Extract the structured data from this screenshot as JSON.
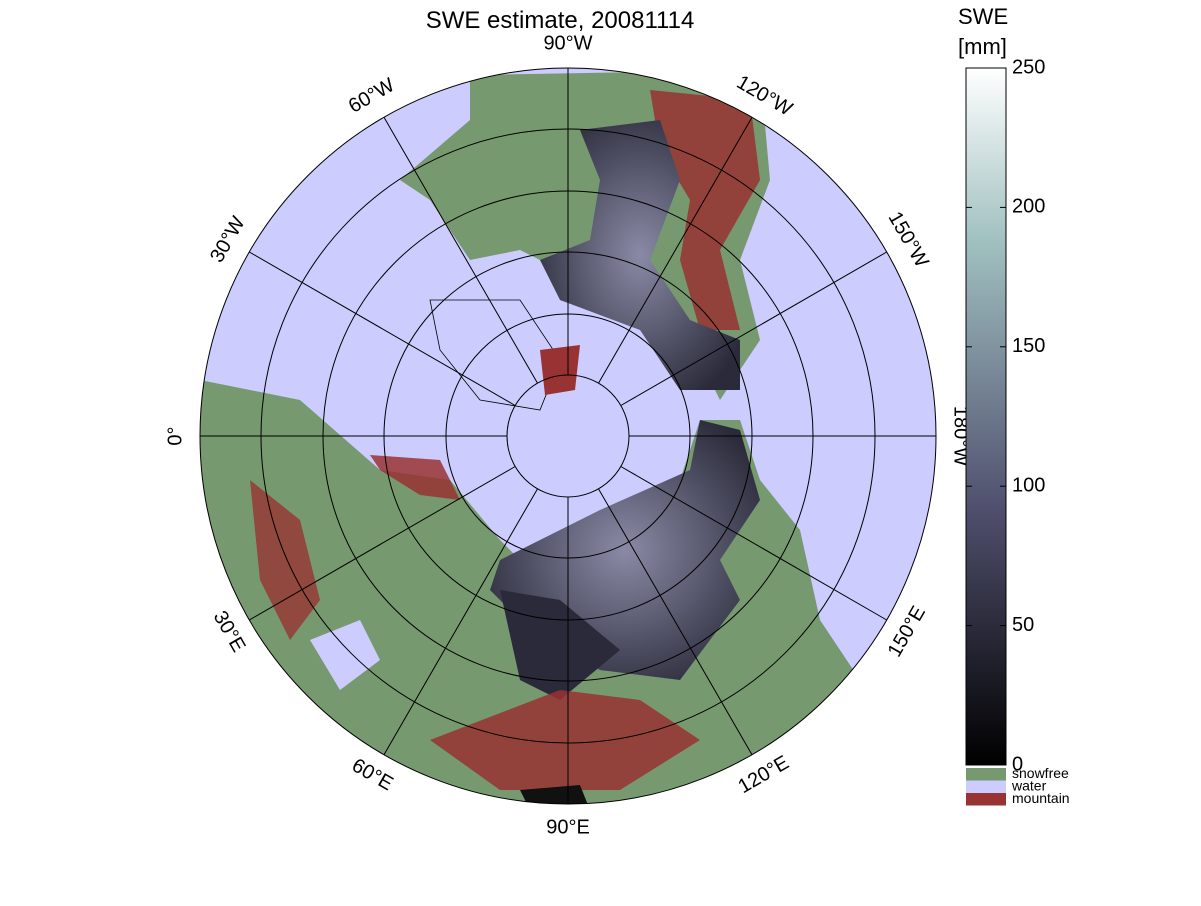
{
  "title": "SWE estimate, 20081114",
  "longitude_labels": [
    "90°W",
    "120°W",
    "150°W",
    "180°W",
    "150°E",
    "120°E",
    "90°E",
    "60°E",
    "30°E",
    "0°",
    "30°W",
    "60°W"
  ],
  "colorbar": {
    "label": [
      "SWE",
      "[mm]"
    ],
    "lim": [
      0,
      250
    ],
    "ticks": [
      0,
      50,
      100,
      150,
      200,
      250
    ]
  },
  "legend": [
    {
      "name": "snowfree",
      "color": "#76996f"
    },
    {
      "name": "water",
      "color": "#ccccff"
    },
    {
      "name": "mountain",
      "color": "#993333"
    }
  ]
}
